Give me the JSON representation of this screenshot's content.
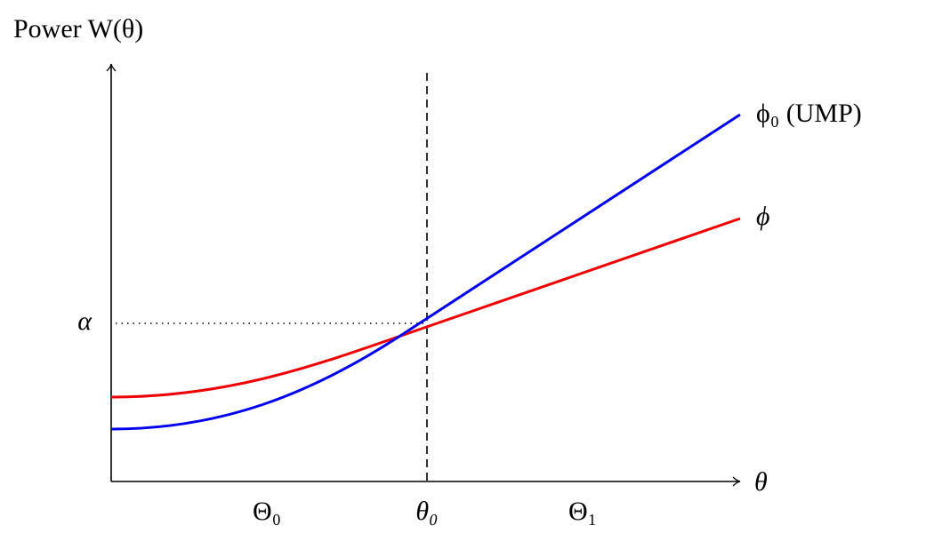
{
  "axes": {
    "y_label": "Power W(θ)",
    "x_label": "θ",
    "alpha_label": "α"
  },
  "regions": {
    "null": "Θ₀",
    "boundary": "θ₀",
    "alternative": "Θ₁"
  },
  "curves": [
    {
      "label": "ϕ₀ (UMP)",
      "color": "#0000ee"
    },
    {
      "label": "ϕ",
      "color": "#ee0000"
    }
  ]
}
